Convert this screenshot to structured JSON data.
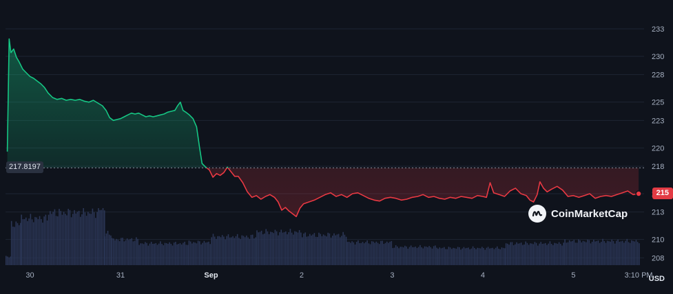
{
  "chart_data": {
    "type": "line",
    "reference_value_label": "217.8197",
    "reference_value": 217.8197,
    "last_value_label": "215",
    "last_value": 215.0,
    "currency": "USD",
    "watermark": "CoinMarketCap",
    "y_ticks": [
      "233",
      "230",
      "228",
      "225",
      "223",
      "220",
      "218",
      "215",
      "213",
      "210",
      "208"
    ],
    "ylim": [
      207.2,
      234.5
    ],
    "x_ticks": [
      {
        "label": "30",
        "bold": false
      },
      {
        "label": "31",
        "bold": false
      },
      {
        "label": "Sep",
        "bold": true
      },
      {
        "label": "2",
        "bold": false
      },
      {
        "label": "3",
        "bold": false
      },
      {
        "label": "4",
        "bold": false
      },
      {
        "label": "5",
        "bold": false
      },
      {
        "label": "3:10 PM",
        "bold": false
      }
    ],
    "x_tick_times": [
      0.0,
      1.0,
      2.0,
      3.0,
      4.0,
      5.0,
      6.0,
      6.72
    ],
    "xlim": [
      -0.27,
      6.78
    ],
    "series": [
      {
        "color_above": "#16c784",
        "color_below": "#ea3943",
        "points": [
          [
            -0.25,
            219.6
          ],
          [
            -0.23,
            231.9
          ],
          [
            -0.21,
            230.4
          ],
          [
            -0.18,
            230.8
          ],
          [
            -0.15,
            229.9
          ],
          [
            -0.12,
            229.4
          ],
          [
            -0.08,
            228.6
          ],
          [
            -0.04,
            228.2
          ],
          [
            0.0,
            227.8
          ],
          [
            0.04,
            227.6
          ],
          [
            0.08,
            227.3
          ],
          [
            0.12,
            227.0
          ],
          [
            0.16,
            226.6
          ],
          [
            0.2,
            226.0
          ],
          [
            0.25,
            225.5
          ],
          [
            0.3,
            225.3
          ],
          [
            0.35,
            225.4
          ],
          [
            0.4,
            225.2
          ],
          [
            0.45,
            225.3
          ],
          [
            0.5,
            225.2
          ],
          [
            0.55,
            225.3
          ],
          [
            0.6,
            225.1
          ],
          [
            0.65,
            225.0
          ],
          [
            0.7,
            225.2
          ],
          [
            0.75,
            224.9
          ],
          [
            0.8,
            224.6
          ],
          [
            0.84,
            224.1
          ],
          [
            0.88,
            223.3
          ],
          [
            0.92,
            223.0
          ],
          [
            0.96,
            223.1
          ],
          [
            1.0,
            223.2
          ],
          [
            1.04,
            223.4
          ],
          [
            1.08,
            223.6
          ],
          [
            1.12,
            223.8
          ],
          [
            1.16,
            223.7
          ],
          [
            1.2,
            223.8
          ],
          [
            1.24,
            223.6
          ],
          [
            1.28,
            223.4
          ],
          [
            1.32,
            223.5
          ],
          [
            1.36,
            223.4
          ],
          [
            1.4,
            223.5
          ],
          [
            1.44,
            223.6
          ],
          [
            1.48,
            223.7
          ],
          [
            1.52,
            223.9
          ],
          [
            1.56,
            224.0
          ],
          [
            1.6,
            224.1
          ],
          [
            1.63,
            224.6
          ],
          [
            1.66,
            225.0
          ],
          [
            1.69,
            224.1
          ],
          [
            1.72,
            223.9
          ],
          [
            1.76,
            223.6
          ],
          [
            1.8,
            223.2
          ],
          [
            1.84,
            222.3
          ],
          [
            1.87,
            220.2
          ],
          [
            1.9,
            218.3
          ],
          [
            1.94,
            217.9
          ],
          [
            1.98,
            217.6
          ],
          [
            2.02,
            216.8
          ],
          [
            2.06,
            217.2
          ],
          [
            2.1,
            217.0
          ],
          [
            2.14,
            217.3
          ],
          [
            2.18,
            217.9
          ],
          [
            2.22,
            217.4
          ],
          [
            2.26,
            216.9
          ],
          [
            2.3,
            216.9
          ],
          [
            2.35,
            216.2
          ],
          [
            2.4,
            215.2
          ],
          [
            2.45,
            214.6
          ],
          [
            2.5,
            214.8
          ],
          [
            2.55,
            214.4
          ],
          [
            2.6,
            214.7
          ],
          [
            2.65,
            214.9
          ],
          [
            2.7,
            214.6
          ],
          [
            2.74,
            214.1
          ],
          [
            2.78,
            213.2
          ],
          [
            2.82,
            213.5
          ],
          [
            2.86,
            213.1
          ],
          [
            2.9,
            212.8
          ],
          [
            2.94,
            212.5
          ],
          [
            2.98,
            213.4
          ],
          [
            3.02,
            213.9
          ],
          [
            3.08,
            214.1
          ],
          [
            3.14,
            214.3
          ],
          [
            3.2,
            214.6
          ],
          [
            3.26,
            214.9
          ],
          [
            3.32,
            215.1
          ],
          [
            3.38,
            214.7
          ],
          [
            3.44,
            214.9
          ],
          [
            3.5,
            214.6
          ],
          [
            3.56,
            215.0
          ],
          [
            3.62,
            215.1
          ],
          [
            3.68,
            214.8
          ],
          [
            3.74,
            214.5
          ],
          [
            3.8,
            214.3
          ],
          [
            3.86,
            214.2
          ],
          [
            3.92,
            214.5
          ],
          [
            3.98,
            214.6
          ],
          [
            4.04,
            214.5
          ],
          [
            4.1,
            214.3
          ],
          [
            4.16,
            214.4
          ],
          [
            4.22,
            214.6
          ],
          [
            4.28,
            214.7
          ],
          [
            4.34,
            214.9
          ],
          [
            4.4,
            214.6
          ],
          [
            4.46,
            214.7
          ],
          [
            4.52,
            214.5
          ],
          [
            4.58,
            214.4
          ],
          [
            4.64,
            214.6
          ],
          [
            4.7,
            214.5
          ],
          [
            4.76,
            214.7
          ],
          [
            4.82,
            214.6
          ],
          [
            4.88,
            214.5
          ],
          [
            4.94,
            214.8
          ],
          [
            5.0,
            214.7
          ],
          [
            5.04,
            214.6
          ],
          [
            5.08,
            216.2
          ],
          [
            5.12,
            215.1
          ],
          [
            5.18,
            214.9
          ],
          [
            5.24,
            214.7
          ],
          [
            5.3,
            215.3
          ],
          [
            5.36,
            215.6
          ],
          [
            5.42,
            215.0
          ],
          [
            5.48,
            214.8
          ],
          [
            5.52,
            214.3
          ],
          [
            5.56,
            214.1
          ],
          [
            5.6,
            214.9
          ],
          [
            5.63,
            216.3
          ],
          [
            5.67,
            215.6
          ],
          [
            5.71,
            215.2
          ],
          [
            5.76,
            215.5
          ],
          [
            5.82,
            215.8
          ],
          [
            5.88,
            215.4
          ],
          [
            5.94,
            214.7
          ],
          [
            6.0,
            214.8
          ],
          [
            6.06,
            214.6
          ],
          [
            6.12,
            214.8
          ],
          [
            6.18,
            215.0
          ],
          [
            6.24,
            214.5
          ],
          [
            6.3,
            214.7
          ],
          [
            6.36,
            214.8
          ],
          [
            6.42,
            214.7
          ],
          [
            6.48,
            214.9
          ],
          [
            6.54,
            215.1
          ],
          [
            6.6,
            215.3
          ],
          [
            6.66,
            214.9
          ],
          [
            6.72,
            215.0
          ]
        ]
      }
    ],
    "volume_segments": [
      {
        "t0": -0.27,
        "t1": -0.21,
        "level": 0.15
      },
      {
        "t0": -0.21,
        "t1": -0.1,
        "level": 0.72
      },
      {
        "t0": -0.1,
        "t1": 0.2,
        "level": 0.82
      },
      {
        "t0": 0.2,
        "t1": 0.75,
        "level": 0.92
      },
      {
        "t0": 0.75,
        "t1": 0.82,
        "level": 1.0
      },
      {
        "t0": 0.82,
        "t1": 0.9,
        "level": 0.55
      },
      {
        "t0": 0.9,
        "t1": 1.2,
        "level": 0.45
      },
      {
        "t0": 1.2,
        "t1": 1.75,
        "level": 0.38
      },
      {
        "t0": 1.75,
        "t1": 2.0,
        "level": 0.4
      },
      {
        "t0": 2.0,
        "t1": 2.5,
        "level": 0.5
      },
      {
        "t0": 2.5,
        "t1": 3.0,
        "level": 0.58
      },
      {
        "t0": 3.0,
        "t1": 3.5,
        "level": 0.53
      },
      {
        "t0": 3.5,
        "t1": 4.0,
        "level": 0.4
      },
      {
        "t0": 4.0,
        "t1": 4.5,
        "level": 0.32
      },
      {
        "t0": 4.5,
        "t1": 5.25,
        "level": 0.3
      },
      {
        "t0": 5.25,
        "t1": 5.9,
        "level": 0.38
      },
      {
        "t0": 5.9,
        "t1": 6.72,
        "level": 0.42
      }
    ]
  }
}
